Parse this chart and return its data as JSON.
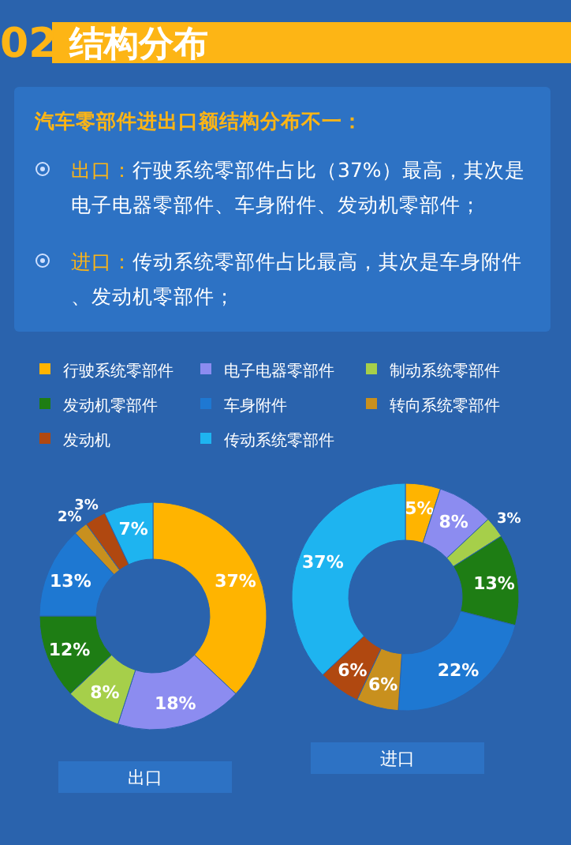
{
  "chart_data": [
    {
      "type": "donut",
      "title": "结构分布",
      "annotations": [
        "02",
        "汽车零部件进出口额结构分布不一：",
        "出口：行驶系统零部件占比（37%）最高，其次是电子电器零部件、车身附件、发动机零部件；",
        "进口：传动系统零部件占比最高，其次是车身附件、发动机零部件；"
      ],
      "xlabel": "出口",
      "legend": "top",
      "value_labels": [
        "37%",
        "18%",
        "8%",
        "12%",
        "13%",
        "2%",
        "3%",
        "7%"
      ],
      "categories": [
        "行驶系统零部件",
        "电子电器零部件",
        "制动系统零部件",
        "发动机零部件",
        "车身附件",
        "转向系统零部件",
        "发动机",
        "传动系统零部件"
      ],
      "values": [
        37,
        18,
        8,
        12,
        13,
        2,
        3,
        7
      ],
      "colors": [
        "#ffb400",
        "#8c8cf0",
        "#a6cf4a",
        "#1e7d14",
        "#1e78d2",
        "#c8901e",
        "#b04810",
        "#1eb4f0"
      ]
    },
    {
      "type": "donut",
      "xlabel": "进口",
      "value_labels": [
        "5%",
        "8%",
        "3%",
        "13%",
        "22%",
        "6%",
        "6%",
        "37%"
      ],
      "values": [
        5,
        8,
        3,
        13,
        22,
        6,
        6,
        37
      ],
      "colors": [
        "#ffb400",
        "#8c8cf0",
        "#a6cf4a",
        "#1e7d14",
        "#1e78d2",
        "#c8901e",
        "#b04810",
        "#1eb4f0"
      ]
    }
  ]
}
